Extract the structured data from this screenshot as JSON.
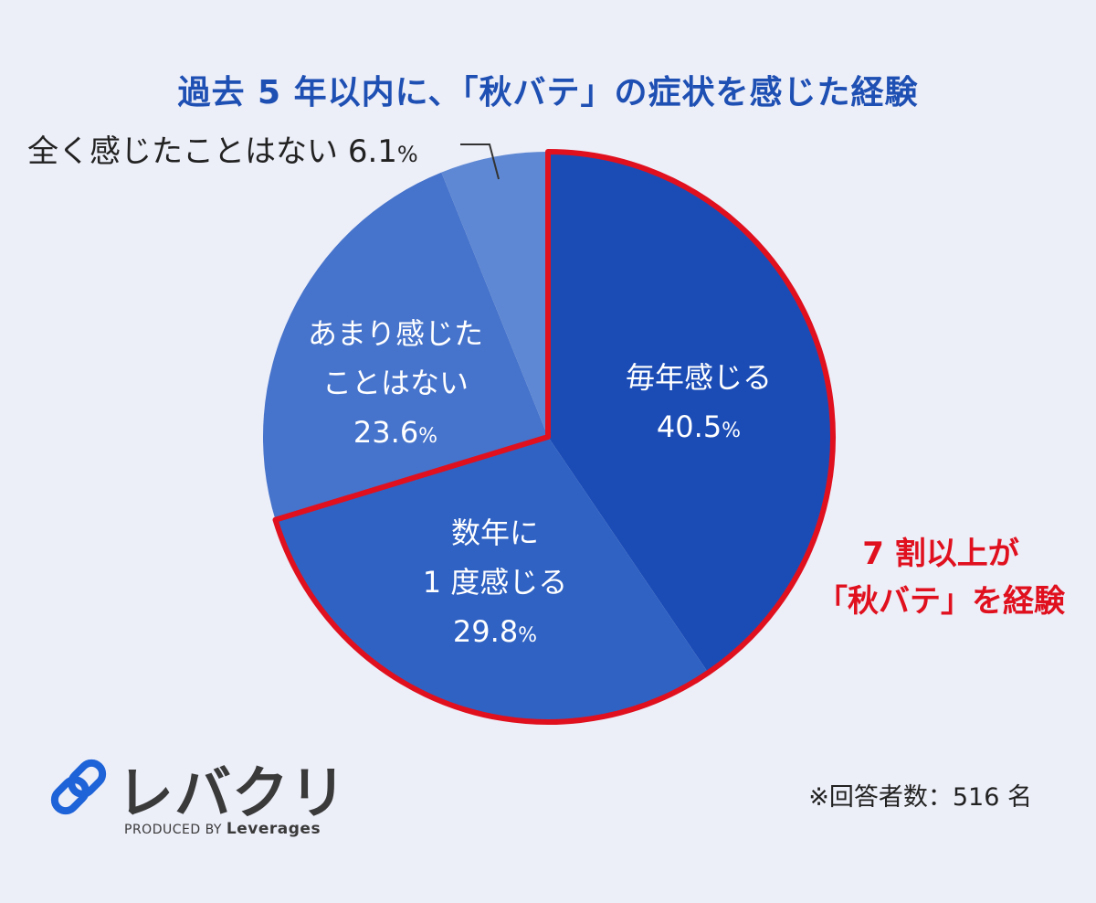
{
  "title": "過去 5 年以内に、「秋バテ」の症状を感じた経験",
  "chart_data": {
    "type": "pie",
    "title": "過去 5 年以内に、「秋バテ」の症状を感じた経験",
    "categories": [
      "毎年感じる",
      "数年に 1 度感じる",
      "あまり感じたことはない",
      "全く感じたことはない"
    ],
    "values": [
      40.5,
      29.8,
      23.6,
      6.1
    ],
    "unit": "%",
    "colors": [
      "#1B4CB6",
      "#3062C3",
      "#4673CB",
      "#5E88D3"
    ],
    "highlight": {
      "categories": [
        "毎年感じる",
        "数年に 1 度感じる"
      ],
      "outline_color": "#E0101E"
    },
    "labels": [
      {
        "lines": [
          "毎年感じる"
        ],
        "value": "40.5",
        "unit": "%"
      },
      {
        "lines": [
          "数年に",
          "1 度感じる"
        ],
        "value": "29.8",
        "unit": "%"
      },
      {
        "lines": [
          "あまり感じた",
          "ことはない"
        ],
        "value": "23.6",
        "unit": "%"
      },
      {
        "lines": [
          "全く感じたことはない"
        ],
        "value": "6.1",
        "unit": "%"
      }
    ]
  },
  "emphasis": {
    "line1": "7 割以上が",
    "line2": "「秋バテ」を経験",
    "color": "#E0101E"
  },
  "logo": {
    "name": "レバクリ",
    "produced_by": "PRODUCED BY",
    "company": "Leverages",
    "icon": "chain-link-icon"
  },
  "respondents": "※回答者数：516 名"
}
